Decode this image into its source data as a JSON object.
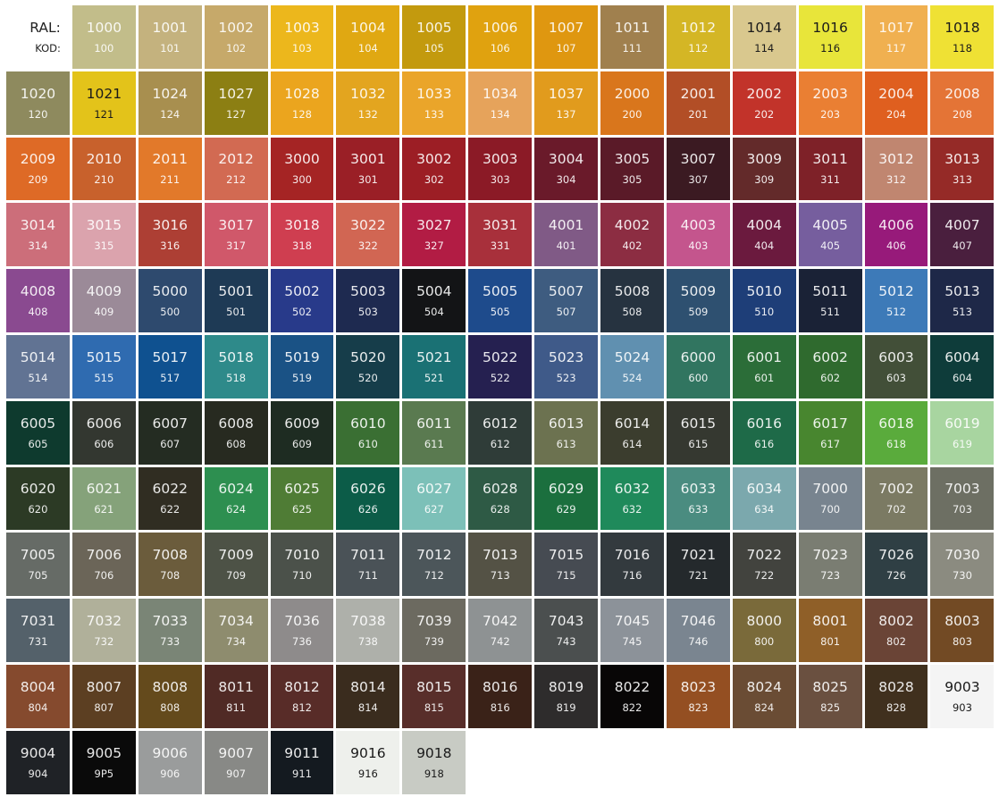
{
  "header": {
    "ral_label": "RAL:",
    "kod_label": "KOD:"
  },
  "dark_text_color": "#1a1a1a",
  "swatches": [
    {
      "ral": "1000",
      "kod": "100",
      "color": "#c2bd8a"
    },
    {
      "ral": "1001",
      "kod": "101",
      "color": "#c4b27e"
    },
    {
      "ral": "1002",
      "kod": "102",
      "color": "#c6a96a"
    },
    {
      "ral": "1003",
      "kod": "103",
      "color": "#ecb71c"
    },
    {
      "ral": "1004",
      "kod": "104",
      "color": "#e0a812"
    },
    {
      "ral": "1005",
      "kod": "105",
      "color": "#c39a0e"
    },
    {
      "ral": "1006",
      "kod": "106",
      "color": "#e0a20f"
    },
    {
      "ral": "1007",
      "kod": "107",
      "color": "#df9710"
    },
    {
      "ral": "1011",
      "kod": "111",
      "color": "#a0804e"
    },
    {
      "ral": "1012",
      "kod": "112",
      "color": "#d4b625"
    },
    {
      "ral": "1014",
      "kod": "114",
      "color": "#d9c88e",
      "dark": true
    },
    {
      "ral": "1016",
      "kod": "116",
      "color": "#e8e53a",
      "dark": true
    },
    {
      "ral": "1017",
      "kod": "117",
      "color": "#f0b050"
    },
    {
      "ral": "1018",
      "kod": "118",
      "color": "#efe134",
      "dark": true
    },
    {
      "ral": "1020",
      "kod": "120",
      "color": "#8e8a5e"
    },
    {
      "ral": "1021",
      "kod": "121",
      "color": "#e3c31a",
      "dark": true
    },
    {
      "ral": "1024",
      "kod": "124",
      "color": "#a88f4f"
    },
    {
      "ral": "1027",
      "kod": "127",
      "color": "#8c7f13"
    },
    {
      "ral": "1028",
      "kod": "128",
      "color": "#eba51e"
    },
    {
      "ral": "1032",
      "kod": "132",
      "color": "#e3a51f"
    },
    {
      "ral": "1033",
      "kod": "133",
      "color": "#eaa52a"
    },
    {
      "ral": "1034",
      "kod": "134",
      "color": "#e6a35b"
    },
    {
      "ral": "1037",
      "kod": "137",
      "color": "#e19b1d"
    },
    {
      "ral": "2000",
      "kod": "200",
      "color": "#d9761c"
    },
    {
      "ral": "2001",
      "kod": "201",
      "color": "#b24e26"
    },
    {
      "ral": "2002",
      "kod": "202",
      "color": "#c2332a"
    },
    {
      "ral": "2003",
      "kod": "203",
      "color": "#ea7f33"
    },
    {
      "ral": "2004",
      "kod": "204",
      "color": "#df5f1f"
    },
    {
      "ral": "2008",
      "kod": "208",
      "color": "#e47436"
    },
    {
      "ral": "2009",
      "kod": "209",
      "color": "#de6a26"
    },
    {
      "ral": "2010",
      "kod": "210",
      "color": "#c8612c"
    },
    {
      "ral": "2011",
      "kod": "211",
      "color": "#e2792a"
    },
    {
      "ral": "2012",
      "kod": "212",
      "color": "#d26a52"
    },
    {
      "ral": "3000",
      "kod": "300",
      "color": "#a52424"
    },
    {
      "ral": "3001",
      "kod": "301",
      "color": "#9a1f26"
    },
    {
      "ral": "3002",
      "kod": "302",
      "color": "#9c1e25"
    },
    {
      "ral": "3003",
      "kod": "303",
      "color": "#8b1a26"
    },
    {
      "ral": "3004",
      "kod": "304",
      "color": "#6a1a2a"
    },
    {
      "ral": "3005",
      "kod": "305",
      "color": "#5a1a28"
    },
    {
      "ral": "3007",
      "kod": "307",
      "color": "#3b1a22"
    },
    {
      "ral": "3009",
      "kod": "309",
      "color": "#632a2a"
    },
    {
      "ral": "3011",
      "kod": "311",
      "color": "#7e2128"
    },
    {
      "ral": "3012",
      "kod": "312",
      "color": "#c08670"
    },
    {
      "ral": "3013",
      "kod": "313",
      "color": "#952a27"
    },
    {
      "ral": "3014",
      "kod": "314",
      "color": "#cc6e7a"
    },
    {
      "ral": "3015",
      "kod": "315",
      "color": "#dba3ad"
    },
    {
      "ral": "3016",
      "kod": "316",
      "color": "#ad3f34"
    },
    {
      "ral": "3017",
      "kod": "317",
      "color": "#d0586a"
    },
    {
      "ral": "3018",
      "kod": "318",
      "color": "#cf3e50"
    },
    {
      "ral": "3022",
      "kod": "322",
      "color": "#d16653"
    },
    {
      "ral": "3027",
      "kod": "327",
      "color": "#b21c44"
    },
    {
      "ral": "3031",
      "kod": "331",
      "color": "#a8303b"
    },
    {
      "ral": "4001",
      "kod": "401",
      "color": "#805a86"
    },
    {
      "ral": "4002",
      "kod": "402",
      "color": "#8c2d42"
    },
    {
      "ral": "4003",
      "kod": "403",
      "color": "#c4558d"
    },
    {
      "ral": "4004",
      "kod": "404",
      "color": "#6b1a3e"
    },
    {
      "ral": "4005",
      "kod": "405",
      "color": "#765e9e"
    },
    {
      "ral": "4006",
      "kod": "406",
      "color": "#971a7a"
    },
    {
      "ral": "4007",
      "kod": "407",
      "color": "#4a1f3e"
    },
    {
      "ral": "4008",
      "kod": "408",
      "color": "#8a4a90"
    },
    {
      "ral": "4009",
      "kod": "409",
      "color": "#9b8a98"
    },
    {
      "ral": "5000",
      "kod": "500",
      "color": "#2e4a6e"
    },
    {
      "ral": "5001",
      "kod": "501",
      "color": "#1e3a55"
    },
    {
      "ral": "5002",
      "kod": "502",
      "color": "#283a8a"
    },
    {
      "ral": "5003",
      "kod": "503",
      "color": "#1e2a50"
    },
    {
      "ral": "5004",
      "kod": "504",
      "color": "#131416"
    },
    {
      "ral": "5005",
      "kod": "505",
      "color": "#1e4b8c"
    },
    {
      "ral": "5007",
      "kod": "507",
      "color": "#3e5c80"
    },
    {
      "ral": "5008",
      "kod": "508",
      "color": "#263340"
    },
    {
      "ral": "5009",
      "kod": "509",
      "color": "#2e5070"
    },
    {
      "ral": "5010",
      "kod": "510",
      "color": "#1e3e78"
    },
    {
      "ral": "5011",
      "kod": "511",
      "color": "#1a2236"
    },
    {
      "ral": "5012",
      "kod": "512",
      "color": "#3d7ab8"
    },
    {
      "ral": "5013",
      "kod": "513",
      "color": "#1e2848"
    },
    {
      "ral": "5014",
      "kod": "514",
      "color": "#617393"
    },
    {
      "ral": "5015",
      "kod": "515",
      "color": "#2f6bb0"
    },
    {
      "ral": "5017",
      "kod": "517",
      "color": "#0f5190"
    },
    {
      "ral": "5018",
      "kod": "518",
      "color": "#2e8a8a"
    },
    {
      "ral": "5019",
      "kod": "519",
      "color": "#1a5285"
    },
    {
      "ral": "5020",
      "kod": "520",
      "color": "#163d4a"
    },
    {
      "ral": "5021",
      "kod": "521",
      "color": "#1a7174"
    },
    {
      "ral": "5022",
      "kod": "522",
      "color": "#252050"
    },
    {
      "ral": "5023",
      "kod": "523",
      "color": "#3f5a89"
    },
    {
      "ral": "5024",
      "kod": "524",
      "color": "#6090b0"
    },
    {
      "ral": "6000",
      "kod": "600",
      "color": "#317560"
    },
    {
      "ral": "6001",
      "kod": "601",
      "color": "#2b6d38"
    },
    {
      "ral": "6002",
      "kod": "602",
      "color": "#2f6a2e"
    },
    {
      "ral": "6003",
      "kod": "603",
      "color": "#424f38"
    },
    {
      "ral": "6004",
      "kod": "604",
      "color": "#0e3c3a"
    },
    {
      "ral": "6005",
      "kod": "605",
      "color": "#0e3a2e"
    },
    {
      "ral": "6006",
      "kod": "606",
      "color": "#333730"
    },
    {
      "ral": "6007",
      "kod": "607",
      "color": "#242c22"
    },
    {
      "ral": "6008",
      "kod": "608",
      "color": "#272a20"
    },
    {
      "ral": "6009",
      "kod": "609",
      "color": "#1e2c22"
    },
    {
      "ral": "6010",
      "kod": "610",
      "color": "#3a6f33"
    },
    {
      "ral": "6011",
      "kod": "611",
      "color": "#5a7a50"
    },
    {
      "ral": "6012",
      "kod": "612",
      "color": "#2f3c38"
    },
    {
      "ral": "6013",
      "kod": "613",
      "color": "#6c7250"
    },
    {
      "ral": "6014",
      "kod": "614",
      "color": "#3b3d2e"
    },
    {
      "ral": "6015",
      "kod": "615",
      "color": "#353830"
    },
    {
      "ral": "6016",
      "kod": "616",
      "color": "#1e6a48"
    },
    {
      "ral": "6017",
      "kod": "617",
      "color": "#48862f"
    },
    {
      "ral": "6018",
      "kod": "618",
      "color": "#5aab3c"
    },
    {
      "ral": "6019",
      "kod": "619",
      "color": "#a8d5a0"
    },
    {
      "ral": "6020",
      "kod": "620",
      "color": "#2c3a25"
    },
    {
      "ral": "6021",
      "kod": "621",
      "color": "#85a27a"
    },
    {
      "ral": "6022",
      "kod": "622",
      "color": "#302d22"
    },
    {
      "ral": "6024",
      "kod": "624",
      "color": "#2d8f50"
    },
    {
      "ral": "6025",
      "kod": "625",
      "color": "#4f7c35"
    },
    {
      "ral": "6026",
      "kod": "626",
      "color": "#0c5c48"
    },
    {
      "ral": "6027",
      "kod": "627",
      "color": "#7cc0b8"
    },
    {
      "ral": "6028",
      "kod": "628",
      "color": "#2e5a45"
    },
    {
      "ral": "6029",
      "kod": "629",
      "color": "#1b6f3e"
    },
    {
      "ral": "6032",
      "kod": "632",
      "color": "#1f8a5b"
    },
    {
      "ral": "6033",
      "kod": "633",
      "color": "#4a8c80"
    },
    {
      "ral": "6034",
      "kod": "634",
      "color": "#7ba8ad"
    },
    {
      "ral": "7000",
      "kod": "700",
      "color": "#78848f"
    },
    {
      "ral": "7002",
      "kod": "702",
      "color": "#7b7a63"
    },
    {
      "ral": "7003",
      "kod": "703",
      "color": "#6d6f63"
    },
    {
      "ral": "7005",
      "kod": "705",
      "color": "#666b66"
    },
    {
      "ral": "7006",
      "kod": "706",
      "color": "#6b6558"
    },
    {
      "ral": "7008",
      "kod": "708",
      "color": "#6b5c3c"
    },
    {
      "ral": "7009",
      "kod": "709",
      "color": "#4d5246"
    },
    {
      "ral": "7010",
      "kod": "710",
      "color": "#4b514a"
    },
    {
      "ral": "7011",
      "kod": "711",
      "color": "#4a5257"
    },
    {
      "ral": "7012",
      "kod": "712",
      "color": "#4c565a"
    },
    {
      "ral": "7013",
      "kod": "713",
      "color": "#545245"
    },
    {
      "ral": "7015",
      "kod": "715",
      "color": "#464b52"
    },
    {
      "ral": "7016",
      "kod": "716",
      "color": "#333a3e"
    },
    {
      "ral": "7021",
      "kod": "721",
      "color": "#24292c"
    },
    {
      "ral": "7022",
      "kod": "722",
      "color": "#42433e"
    },
    {
      "ral": "7023",
      "kod": "723",
      "color": "#7a7d72"
    },
    {
      "ral": "7026",
      "kod": "726",
      "color": "#2f3f44"
    },
    {
      "ral": "7030",
      "kod": "730",
      "color": "#8b8b80"
    },
    {
      "ral": "7031",
      "kod": "731",
      "color": "#54616a"
    },
    {
      "ral": "7032",
      "kod": "732",
      "color": "#b0b09a"
    },
    {
      "ral": "7033",
      "kod": "733",
      "color": "#7a8576"
    },
    {
      "ral": "7034",
      "kod": "734",
      "color": "#8e8c6e"
    },
    {
      "ral": "7036",
      "kod": "736",
      "color": "#8e8b8b"
    },
    {
      "ral": "7038",
      "kod": "738",
      "color": "#aeb0aa"
    },
    {
      "ral": "7039",
      "kod": "739",
      "color": "#6c6a60"
    },
    {
      "ral": "7042",
      "kod": "742",
      "color": "#8e9293"
    },
    {
      "ral": "7043",
      "kod": "743",
      "color": "#4b4f4f"
    },
    {
      "ral": "7045",
      "kod": "745",
      "color": "#8c9299"
    },
    {
      "ral": "7046",
      "kod": "746",
      "color": "#7a8590"
    },
    {
      "ral": "8000",
      "kod": "800",
      "color": "#7a6a3a"
    },
    {
      "ral": "8001",
      "kod": "801",
      "color": "#8f5f28"
    },
    {
      "ral": "8002",
      "kod": "802",
      "color": "#6a4436"
    },
    {
      "ral": "8003",
      "kod": "803",
      "color": "#724a24"
    },
    {
      "ral": "8004",
      "kod": "804",
      "color": "#854a2e"
    },
    {
      "ral": "8007",
      "kod": "807",
      "color": "#5c3f22"
    },
    {
      "ral": "8008",
      "kod": "808",
      "color": "#644a1c"
    },
    {
      "ral": "8011",
      "kod": "811",
      "color": "#502a25"
    },
    {
      "ral": "8012",
      "kod": "812",
      "color": "#582c28"
    },
    {
      "ral": "8014",
      "kod": "814",
      "color": "#3a2c1e"
    },
    {
      "ral": "8015",
      "kod": "815",
      "color": "#582e2a"
    },
    {
      "ral": "8016",
      "kod": "816",
      "color": "#3a2218"
    },
    {
      "ral": "8019",
      "kod": "819",
      "color": "#2e2c2c"
    },
    {
      "ral": "8022",
      "kod": "822",
      "color": "#080606"
    },
    {
      "ral": "8023",
      "kod": "823",
      "color": "#944f22"
    },
    {
      "ral": "8024",
      "kod": "824",
      "color": "#6a4c34"
    },
    {
      "ral": "8025",
      "kod": "825",
      "color": "#6a5040"
    },
    {
      "ral": "8028",
      "kod": "828",
      "color": "#40301e"
    },
    {
      "ral": "9003",
      "kod": "903",
      "color": "#f4f4f4",
      "dark": true
    },
    {
      "ral": "9004",
      "kod": "904",
      "color": "#1f2226"
    },
    {
      "ral": "9005",
      "kod": "9P5",
      "color": "#0a0a0a"
    },
    {
      "ral": "9006",
      "kod": "906",
      "color": "#9a9c9c"
    },
    {
      "ral": "9007",
      "kod": "907",
      "color": "#888986"
    },
    {
      "ral": "9011",
      "kod": "911",
      "color": "#141a20"
    },
    {
      "ral": "9016",
      "kod": "916",
      "color": "#eef0ec",
      "dark": true
    },
    {
      "ral": "9018",
      "kod": "918",
      "color": "#c8cbc4",
      "dark": true
    }
  ]
}
